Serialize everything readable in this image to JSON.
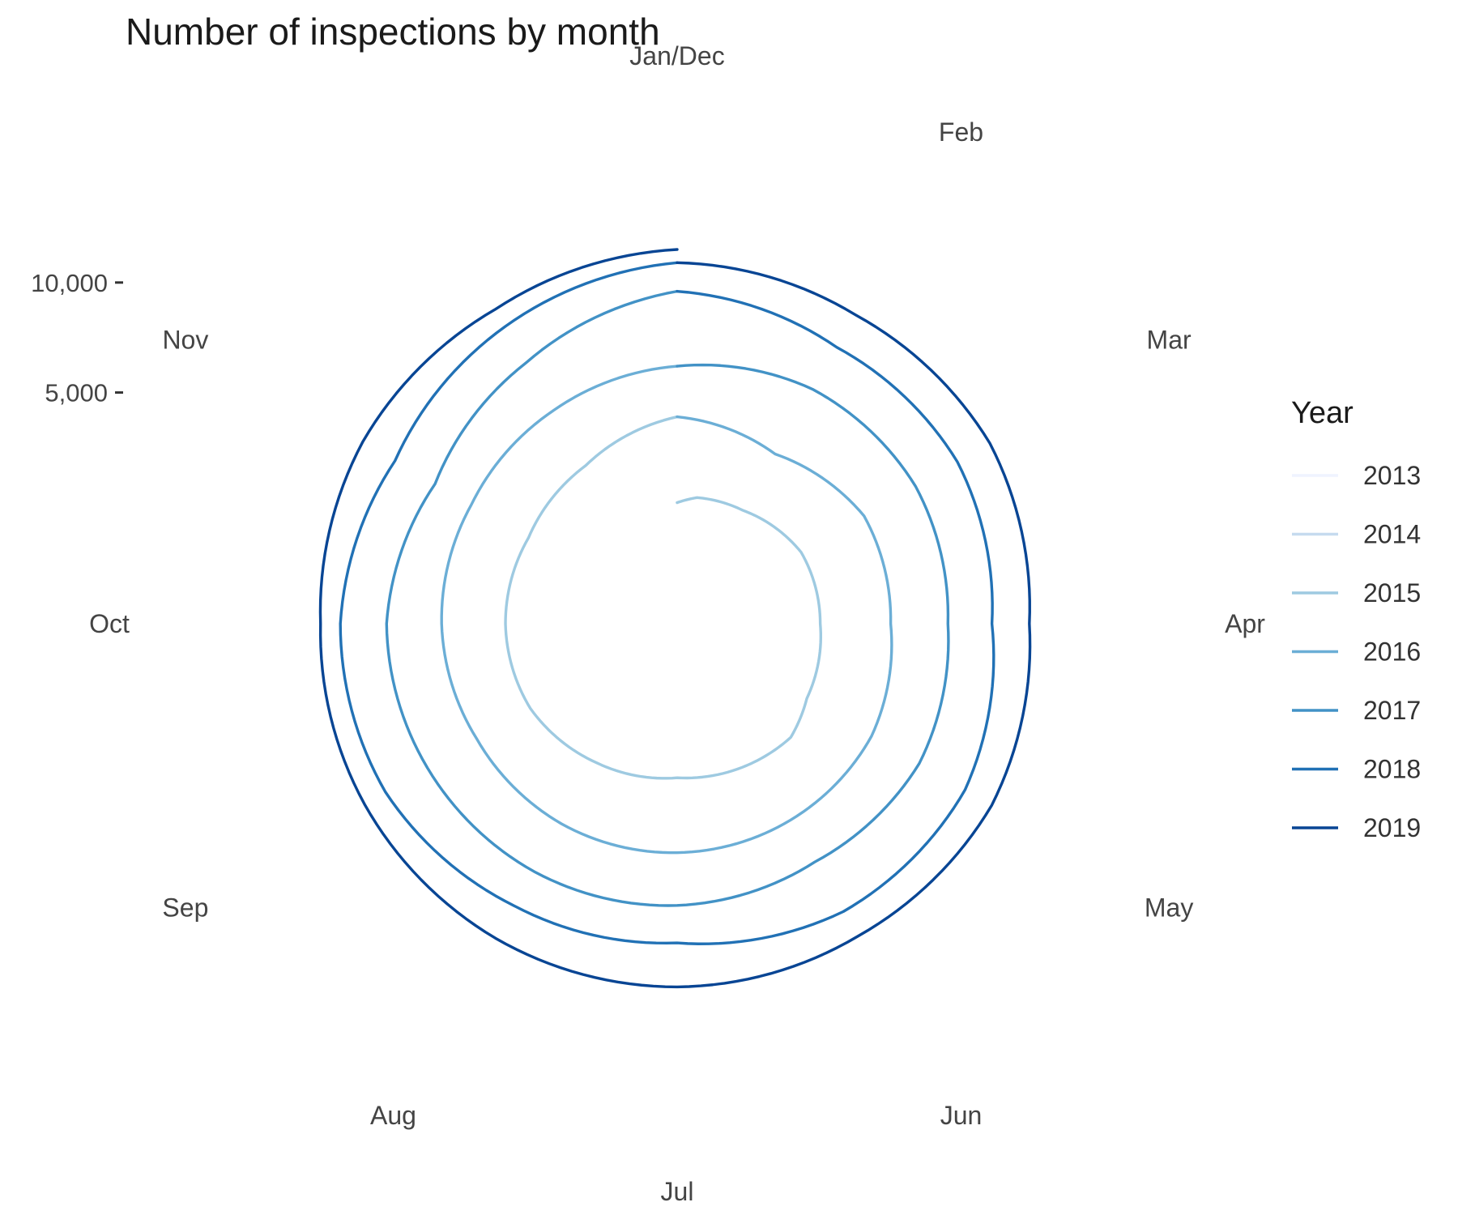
{
  "chart_data": {
    "type": "line",
    "coordinate_system": "polar (spiral)",
    "title": "Number of inspections by month",
    "angle_labels": [
      "Jan/Dec",
      "Feb",
      "Mar",
      "Apr",
      "May",
      "Jun",
      "Jul",
      "Aug",
      "Sep",
      "Oct",
      "Nov"
    ],
    "radial_ticks": [
      {
        "value": 5000,
        "label": "5,000"
      },
      {
        "value": 10000,
        "label": "10,000"
      }
    ],
    "radial_range": [
      -5500,
      11500
    ],
    "grid": false,
    "legend": {
      "title": "Year",
      "placement": "right"
    },
    "x_unit": "month index (continuous, year + month)",
    "y_unit": "number of inspections",
    "series": [
      {
        "name": "2013",
        "color": "#eff3ff",
        "points": [
          [
            0.0,
            0
          ]
        ]
      },
      {
        "name": "2014",
        "color": "#c6dbef",
        "points": [
          [
            0.0,
            0
          ]
        ]
      },
      {
        "name": "2015",
        "color": "#9ecae1",
        "points": [
          [
            0.0,
            0
          ],
          [
            0.3,
            300
          ],
          [
            1.0,
            450
          ],
          [
            2.0,
            1000
          ],
          [
            3.0,
            1000
          ],
          [
            4.0,
            1300
          ],
          [
            4.5,
            1800
          ],
          [
            5.0,
            1700
          ],
          [
            6.0,
            1500
          ],
          [
            7.0,
            1800
          ],
          [
            8.0,
            2200
          ],
          [
            9.0,
            2300
          ],
          [
            10.0,
            2300
          ],
          [
            11.0,
            2800
          ],
          [
            12.0,
            3900
          ]
        ]
      },
      {
        "name": "2016",
        "color": "#6baed6",
        "points": [
          [
            0.0,
            3900
          ],
          [
            1.0,
            3400
          ],
          [
            2.0,
            4300
          ],
          [
            3.0,
            4200
          ],
          [
            4.0,
            4700
          ],
          [
            5.0,
            4800
          ],
          [
            6.0,
            4900
          ],
          [
            7.0,
            5000
          ],
          [
            8.0,
            5000
          ],
          [
            9.0,
            5200
          ],
          [
            10.0,
            5300
          ],
          [
            11.0,
            5700
          ],
          [
            12.0,
            6200
          ]
        ]
      },
      {
        "name": "2017",
        "color": "#4292c6",
        "points": [
          [
            0.0,
            6200
          ],
          [
            1.0,
            6800
          ],
          [
            2.0,
            7000
          ],
          [
            3.0,
            6800
          ],
          [
            4.0,
            7200
          ],
          [
            5.0,
            7000
          ],
          [
            6.0,
            7300
          ],
          [
            7.0,
            7500
          ],
          [
            8.0,
            7600
          ],
          [
            9.0,
            7700
          ],
          [
            10.0,
            7200
          ],
          [
            11.0,
            8200
          ],
          [
            12.0,
            9600
          ]
        ]
      },
      {
        "name": "2018",
        "color": "#2171b5",
        "points": [
          [
            0.0,
            9600
          ],
          [
            1.0,
            9000
          ],
          [
            2.0,
            9200
          ],
          [
            3.0,
            8800
          ],
          [
            4.0,
            9600
          ],
          [
            5.0,
            9600
          ],
          [
            6.0,
            9000
          ],
          [
            7.0,
            9300
          ],
          [
            8.0,
            9800
          ],
          [
            9.0,
            9800
          ],
          [
            10.0,
            9300
          ],
          [
            11.0,
            10100
          ],
          [
            12.0,
            10900
          ]
        ]
      },
      {
        "name": "2019",
        "color": "#084594",
        "points": [
          [
            0.0,
            10900
          ],
          [
            1.0,
            10700
          ],
          [
            2.0,
            10900
          ],
          [
            3.0,
            10500
          ],
          [
            4.0,
            11000
          ],
          [
            5.0,
            10900
          ],
          [
            6.0,
            11000
          ],
          [
            7.0,
            11000
          ],
          [
            8.0,
            10900
          ],
          [
            9.0,
            10700
          ],
          [
            10.0,
            11000
          ],
          [
            11.0,
            11000
          ],
          [
            12.0,
            11500
          ]
        ]
      }
    ]
  }
}
